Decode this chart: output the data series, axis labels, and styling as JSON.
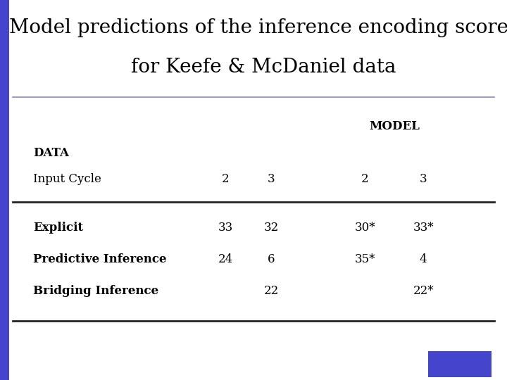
{
  "title_line1": "Model predictions of the inference encoding scores",
  "title_line2": "for Keefe & McDaniel data",
  "title_bg": "#ffffff",
  "table_bg": "#e8e8f0",
  "left_bar_color": "#4444cc",
  "model_label": "MODEL",
  "data_label": "DATA",
  "input_cycle_label": "Input Cycle",
  "rows": [
    {
      "label": "Explicit",
      "c2": "33",
      "c3": "32",
      "c4": "30*",
      "c5": "33*"
    },
    {
      "label": "Predictive Inference",
      "c2": "24",
      "c3": "6",
      "c4": "35*",
      "c5": "4"
    },
    {
      "label": "Bridging Inference",
      "c2": "",
      "c3": "22",
      "c4": "",
      "c5": "22*"
    }
  ],
  "title_fontsize": 20,
  "header_fontsize": 12,
  "body_fontsize": 12,
  "divider_color_top": "#8888cc",
  "divider_color_main": "#222222",
  "corner_rect_color": "#4444cc"
}
